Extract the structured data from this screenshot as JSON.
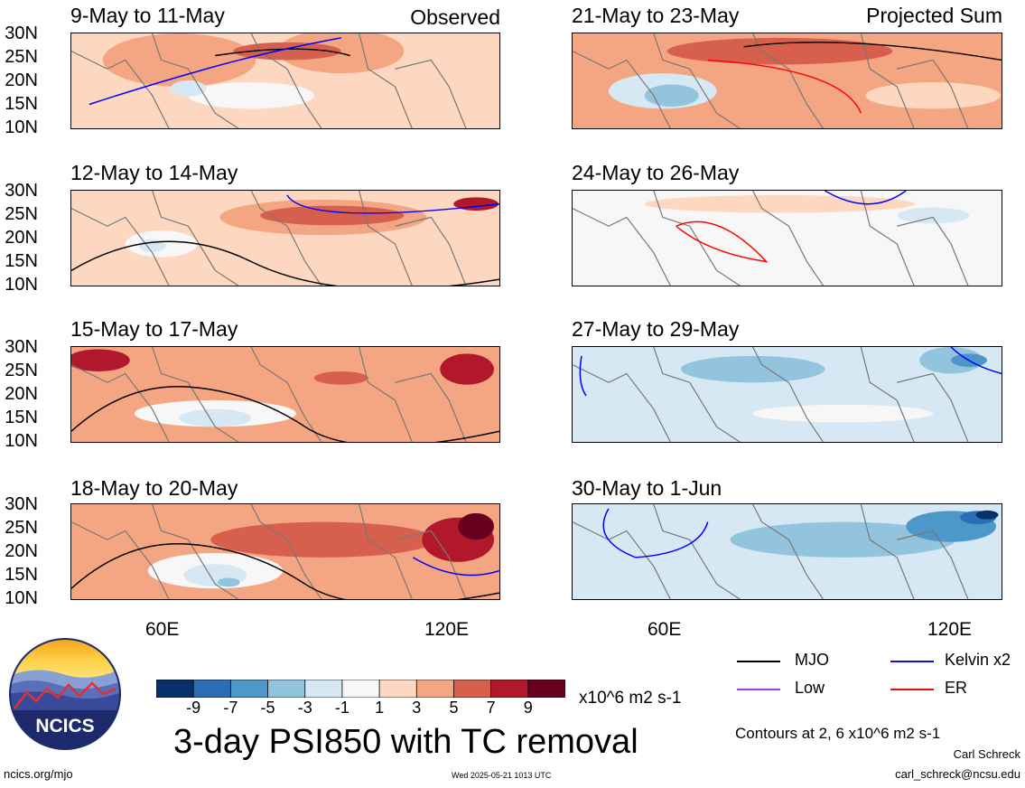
{
  "headers": {
    "left_tag": "Observed",
    "right_tag": "Projected Sum"
  },
  "panels_left": [
    {
      "title": "9-May to 11-May",
      "theme": "obs1"
    },
    {
      "title": "12-May to 14-May",
      "theme": "obs2"
    },
    {
      "title": "15-May to 17-May",
      "theme": "obs3"
    },
    {
      "title": "18-May to 20-May",
      "theme": "obs4"
    }
  ],
  "panels_right": [
    {
      "title": "21-May to 23-May",
      "theme": "prj1"
    },
    {
      "title": "24-May to 26-May",
      "theme": "prj2"
    },
    {
      "title": "27-May to 29-May",
      "theme": "prj3"
    },
    {
      "title": "30-May to 1-Jun",
      "theme": "prj4"
    }
  ],
  "y_ticks": [
    "30N",
    "25N",
    "20N",
    "15N",
    "10N"
  ],
  "x_ticks": [
    "60E",
    "120E"
  ],
  "legend": {
    "items": [
      {
        "label": "MJO",
        "color": "#000000"
      },
      {
        "label": "Kelvin x2",
        "color": "#1010e0"
      },
      {
        "label": "Low",
        "color": "#a040e0"
      },
      {
        "label": "ER",
        "color": "#e01010"
      }
    ],
    "contours_note": "Contours at 2, 6 x10^6 m2 s-1"
  },
  "colorbar": {
    "colors": [
      "#08306b",
      "#2a6eb5",
      "#4e97c9",
      "#93c4de",
      "#d6e8f3",
      "#f7f7f7",
      "#fdd7c0",
      "#f4a582",
      "#d6604d",
      "#b2182b",
      "#67001f"
    ],
    "ticks": [
      "-9",
      "-7",
      "-5",
      "-3",
      "-1",
      "1",
      "3",
      "5",
      "7",
      "9"
    ],
    "units": "x10^6 m2 s-1"
  },
  "main_title": "3-day PSI850 with TC removal",
  "logo_text": "NCICS",
  "footer": {
    "url": "ncics.org/mjo",
    "timestamp": "Wed 2025-05-21 1013 UTC",
    "author": "Carl Schreck",
    "email": "carl_schreck@ncsu.edu"
  }
}
